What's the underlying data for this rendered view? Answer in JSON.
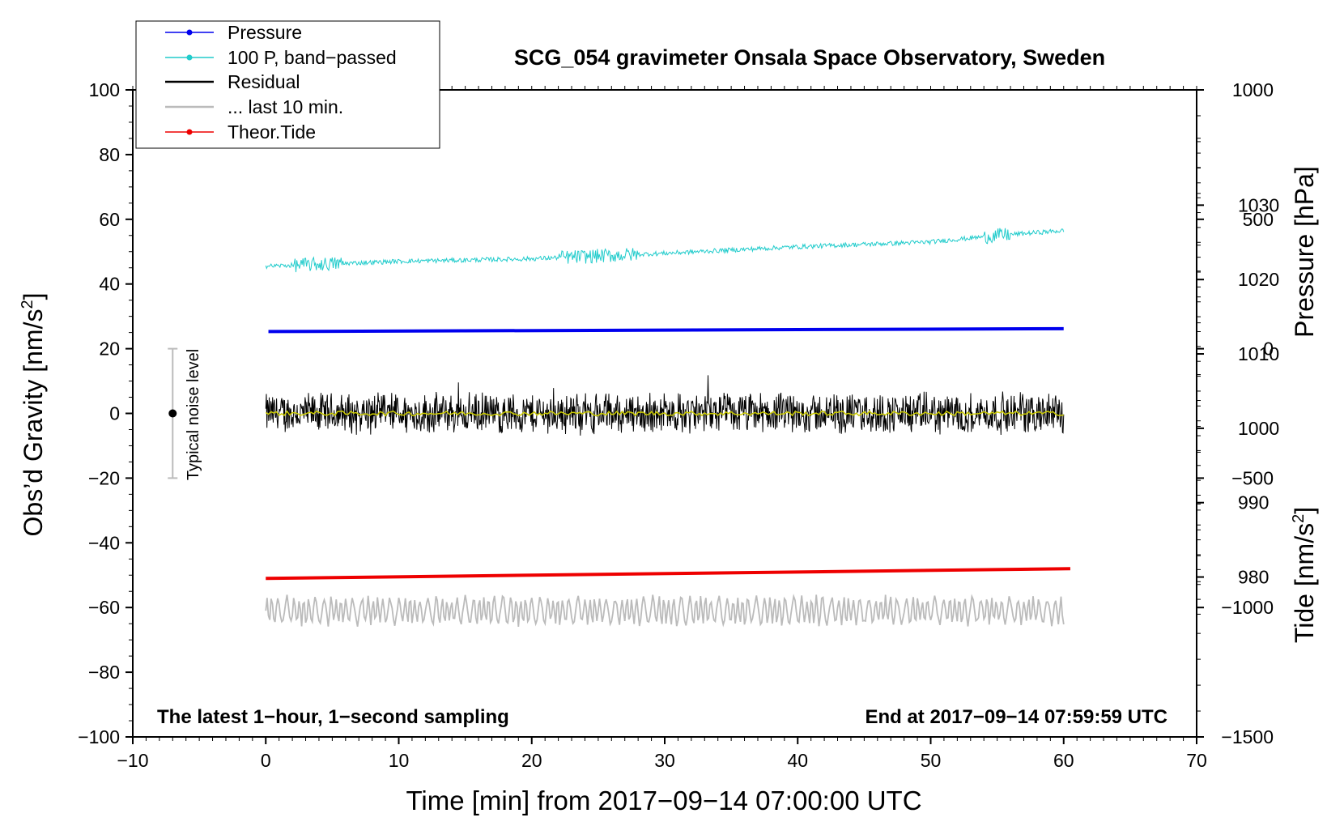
{
  "chart_data": {
    "type": "line",
    "title": "SCG_054 gravimeter Onsala Space Observatory, Sweden",
    "xlabel": "Time [min] from 2017−09−14 07:00:00 UTC",
    "ylabel_main": "Obs’d Gravity [nm/s",
    "ylabel_main_sup": "2",
    "ylabel_main_close": "]",
    "ylabel_pressure": "Pressure [hPa]",
    "ylabel_tide": "Tide [nm/s",
    "ylabel_tide_sup": "2",
    "ylabel_tide_close": "]",
    "xlim": [
      -10,
      70
    ],
    "ylim": [
      -100,
      100
    ],
    "x_ticks": [
      -10,
      0,
      10,
      20,
      30,
      40,
      50,
      60,
      70
    ],
    "x_tick_labels": [
      "−10",
      "0",
      "10",
      "20",
      "30",
      "40",
      "50",
      "60",
      "70"
    ],
    "y_ticks": [
      -100,
      -80,
      -60,
      -40,
      -20,
      0,
      20,
      40,
      60,
      80,
      100
    ],
    "y_tick_labels": [
      "−100",
      "−80",
      "−60",
      "−40",
      "−20",
      "0",
      "20",
      "40",
      "60",
      "80",
      "100"
    ],
    "pressure_ticks": [
      980,
      990,
      1000,
      1010,
      1020,
      1030
    ],
    "pressure_tick_labels": [
      "980",
      "990",
      "1000",
      "1010",
      "1020",
      "1030"
    ],
    "pressure_axis_range": [
      958.5,
      1045.5
    ],
    "tide_ticks": [
      -1500,
      -1000,
      -500,
      0,
      500,
      1000
    ],
    "tide_tick_labels": [
      "−1500",
      "−1000",
      "−500",
      "0",
      "500",
      "1000"
    ],
    "tide_axis_range": [
      -1500,
      1000
    ],
    "note_left": "The latest 1−hour, 1−second sampling",
    "note_right": "End at 2017−09−14 07:59:59 UTC",
    "noise_label": "Typical noise level",
    "noise_bar": {
      "x": -7,
      "center": 0,
      "low": -20,
      "high": 20
    },
    "legend": [
      {
        "label": "Pressure",
        "color": "#0000ee",
        "marker": true
      },
      {
        "label": "100 P, band−passed",
        "color": "#22cccc",
        "marker": true
      },
      {
        "label": "Residual",
        "color": "#000000",
        "marker": false
      },
      {
        "label": "... last 10 min.",
        "color": "#bbbbbb",
        "marker": false
      },
      {
        "label": "Theor.Tide",
        "color": "#ee0000",
        "marker": true
      }
    ],
    "series": [
      {
        "name": "Pressure",
        "color": "#0000ee",
        "x": [
          0.2,
          60
        ],
        "y": [
          25.3,
          26.2
        ]
      },
      {
        "name": "100 P, band−passed",
        "color": "#22cccc",
        "x": [
          0,
          10,
          20,
          30,
          40,
          50,
          55,
          60
        ],
        "y": [
          45.5,
          47,
          47.8,
          49.5,
          51.5,
          53,
          55,
          56.5
        ]
      },
      {
        "name": "Residual",
        "color": "#000000",
        "x": [
          0,
          60
        ],
        "y": [
          0,
          0
        ],
        "amplitude": 6
      },
      {
        "name": "Residual smoothed",
        "color": "#cccc00",
        "x": [
          0,
          60
        ],
        "y": [
          0,
          0
        ]
      },
      {
        "name": "... last 10 min.",
        "color": "#bbbbbb",
        "x": [
          0,
          60
        ],
        "y": [
          -61,
          -61
        ],
        "amplitude": 5
      },
      {
        "name": "Theor.Tide",
        "color": "#ee0000",
        "x": [
          0,
          60.5
        ],
        "y": [
          -51,
          -48
        ]
      }
    ]
  }
}
